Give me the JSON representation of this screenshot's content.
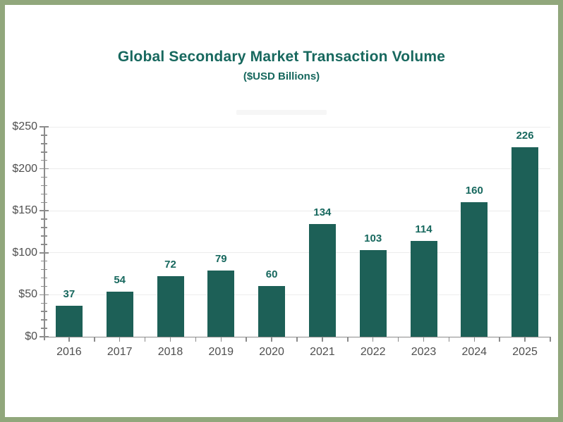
{
  "frame": {
    "border_color": "#91a77c",
    "background": "#ffffff"
  },
  "header": {
    "title": "Global Secondary Market Transaction Volume",
    "subtitle": "($USD Billions)",
    "title_color": "#17685e"
  },
  "chart_data": {
    "type": "bar",
    "title": "Global Secondary Market Transaction Volume",
    "subtitle": "($USD Billions)",
    "categories": [
      "2016",
      "2017",
      "2018",
      "2019",
      "2020",
      "2021",
      "2022",
      "2023",
      "2024",
      "2025"
    ],
    "values": [
      37,
      54,
      72,
      79,
      60,
      134,
      103,
      114,
      160,
      226
    ],
    "xlabel": "",
    "ylabel": "",
    "ylim": [
      0,
      250
    ],
    "y_tick_step": 50,
    "y_minor_tick_step": 10,
    "y_tick_labels": [
      "$0",
      "$50",
      "$100",
      "$150",
      "$200",
      "$250"
    ],
    "grid": true,
    "legend": false,
    "bar_color": "#1d6057",
    "value_label_color": "#17685e",
    "axis_color": "#8c8c8c",
    "tick_label_color": "#4f4f4f",
    "gridline_color": "#ececec"
  }
}
